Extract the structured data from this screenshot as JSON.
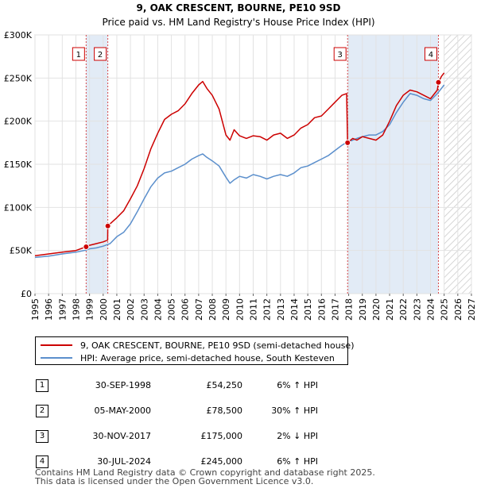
{
  "chart_data": {
    "type": "line",
    "title": "9, OAK CRESCENT, BOURNE, PE10 9SD",
    "subtitle": "Price paid vs. HM Land Registry's House Price Index (HPI)",
    "xlim": [
      1995,
      2027
    ],
    "ylim": [
      0,
      300000
    ],
    "x_ticks": [
      "1995",
      "1996",
      "1997",
      "1998",
      "1999",
      "2000",
      "2001",
      "2002",
      "2003",
      "2004",
      "2005",
      "2006",
      "2007",
      "2008",
      "2009",
      "2010",
      "2011",
      "2012",
      "2013",
      "2014",
      "2015",
      "2016",
      "2017",
      "2018",
      "2019",
      "2020",
      "2021",
      "2022",
      "2023",
      "2024",
      "2025",
      "2026",
      "2027"
    ],
    "y_ticks": [
      {
        "value": 0,
        "label": "£0"
      },
      {
        "value": 50000,
        "label": "£50K"
      },
      {
        "value": 100000,
        "label": "£100K"
      },
      {
        "value": 150000,
        "label": "£150K"
      },
      {
        "value": 200000,
        "label": "£200K"
      },
      {
        "value": 250000,
        "label": "£250K"
      },
      {
        "value": 300000,
        "label": "£300K"
      }
    ],
    "grid": true,
    "future_from": 2025.0,
    "ownership_bands": [
      [
        1998.75,
        2000.34
      ],
      [
        2017.92,
        2024.58
      ]
    ],
    "sales": [
      {
        "id": "1",
        "x": 1998.75,
        "y": 54250
      },
      {
        "id": "2",
        "x": 2000.34,
        "y": 78500
      },
      {
        "id": "3",
        "x": 2017.92,
        "y": 175000
      },
      {
        "id": "4",
        "x": 2024.58,
        "y": 245000
      }
    ],
    "series": [
      {
        "name": "9, OAK CRESCENT, BOURNE, PE10 9SD (semi-detached house)",
        "color": "#cc0000",
        "x": [
          1995.0,
          1996.0,
          1997.0,
          1998.0,
          1998.75,
          1999.0,
          1999.5,
          2000.0,
          2000.33,
          2000.34,
          2001.0,
          2001.5,
          2002.0,
          2002.5,
          2003.0,
          2003.5,
          2004.0,
          2004.5,
          2005.0,
          2005.5,
          2006.0,
          2006.5,
          2007.0,
          2007.3,
          2007.6,
          2008.0,
          2008.5,
          2009.0,
          2009.3,
          2009.6,
          2010.0,
          2010.5,
          2011.0,
          2011.5,
          2012.0,
          2012.5,
          2013.0,
          2013.5,
          2014.0,
          2014.5,
          2015.0,
          2015.5,
          2016.0,
          2016.5,
          2017.0,
          2017.5,
          2017.85,
          2017.92,
          2018.3,
          2018.6,
          2019.0,
          2019.5,
          2020.0,
          2020.5,
          2021.0,
          2021.5,
          2022.0,
          2022.5,
          2023.0,
          2023.5,
          2024.0,
          2024.5,
          2024.58,
          2024.8,
          2025.0
        ],
        "values": [
          44000,
          46000,
          48000,
          50000,
          54250,
          56000,
          58000,
          60000,
          62000,
          78500,
          88000,
          96000,
          110000,
          125000,
          145000,
          168000,
          186000,
          202000,
          208000,
          212000,
          220000,
          232000,
          242000,
          246000,
          238000,
          230000,
          214000,
          184000,
          178000,
          190000,
          183000,
          180000,
          183000,
          182000,
          178000,
          184000,
          186000,
          180000,
          184000,
          192000,
          196000,
          204000,
          206000,
          214000,
          222000,
          230000,
          232000,
          175000,
          180000,
          178000,
          182000,
          180000,
          178000,
          184000,
          200000,
          218000,
          230000,
          236000,
          234000,
          230000,
          226000,
          236000,
          245000,
          252000,
          256000
        ]
      },
      {
        "name": "HPI: Average price, semi-detached house, South Kesteven",
        "color": "#5b8fcc",
        "x": [
          1995.0,
          1996.0,
          1997.0,
          1998.0,
          1998.75,
          1999.0,
          1999.5,
          2000.0,
          2000.5,
          2001.0,
          2001.5,
          2002.0,
          2002.5,
          2003.0,
          2003.5,
          2004.0,
          2004.5,
          2005.0,
          2005.5,
          2006.0,
          2006.5,
          2007.0,
          2007.3,
          2007.6,
          2008.0,
          2008.5,
          2009.0,
          2009.3,
          2009.6,
          2010.0,
          2010.5,
          2011.0,
          2011.5,
          2012.0,
          2012.5,
          2013.0,
          2013.5,
          2014.0,
          2014.5,
          2015.0,
          2015.5,
          2016.0,
          2016.5,
          2017.0,
          2017.5,
          2017.92,
          2018.3,
          2018.6,
          2019.0,
          2019.5,
          2020.0,
          2020.5,
          2021.0,
          2021.5,
          2022.0,
          2022.5,
          2023.0,
          2023.5,
          2024.0,
          2024.5,
          2024.8,
          2025.0
        ],
        "values": [
          42000,
          43500,
          46000,
          48000,
          50500,
          52000,
          53000,
          55000,
          58000,
          66000,
          71000,
          81000,
          95000,
          110000,
          124000,
          134000,
          140000,
          142000,
          146000,
          150000,
          156000,
          160000,
          162000,
          158000,
          154000,
          148000,
          135000,
          128000,
          132000,
          136000,
          134000,
          138000,
          136000,
          133000,
          136000,
          138000,
          136000,
          140000,
          146000,
          148000,
          152000,
          156000,
          160000,
          166000,
          172000,
          176000,
          178000,
          180000,
          182000,
          184000,
          184000,
          188000,
          196000,
          210000,
          222000,
          232000,
          230000,
          226000,
          224000,
          232000,
          238000,
          242000
        ]
      }
    ]
  },
  "legend": {
    "property_label": "9, OAK CRESCENT, BOURNE, PE10 9SD (semi-detached house)",
    "hpi_label": "HPI: Average price, semi-detached house, South Kesteven"
  },
  "table": [
    {
      "num": "1",
      "date": "30-SEP-1998",
      "price": "£54,250",
      "hpi": "6% ↑ HPI"
    },
    {
      "num": "2",
      "date": "05-MAY-2000",
      "price": "£78,500",
      "hpi": "30% ↑ HPI"
    },
    {
      "num": "3",
      "date": "30-NOV-2017",
      "price": "£175,000",
      "hpi": "2% ↓ HPI"
    },
    {
      "num": "4",
      "date": "30-JUL-2024",
      "price": "£245,000",
      "hpi": "6% ↑ HPI"
    }
  ],
  "footer": {
    "line1": "Contains HM Land Registry data © Crown copyright and database right 2025.",
    "line2": "This data is licensed under the Open Government Licence v3.0."
  }
}
